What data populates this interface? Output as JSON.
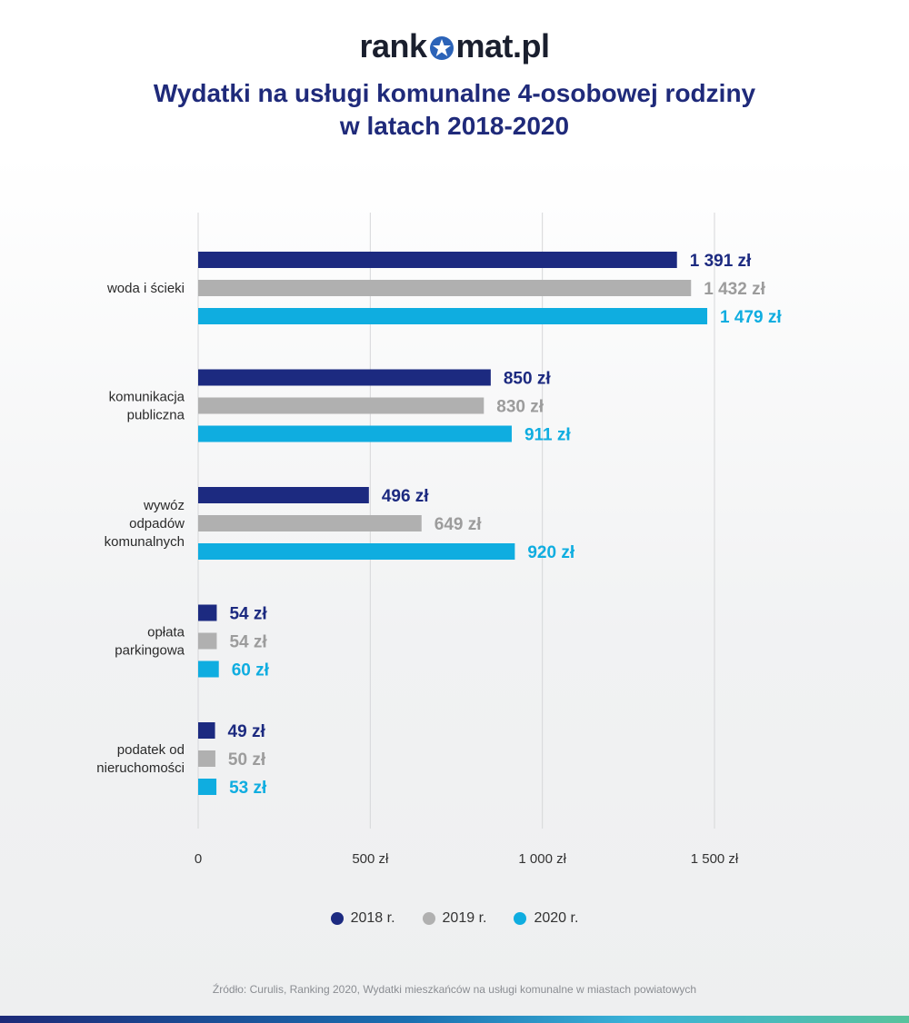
{
  "brand": {
    "logo_text_left": "rank",
    "logo_text_right": "mat.pl"
  },
  "title_line1": "Wydatki na usługi komunalne 4-osobowej rodziny",
  "title_line2": "w latach 2018-2020",
  "source": "Źródło: Curulis, Ranking 2020, Wydatki mieszkańców na usługi komunalne w miastach powiatowych",
  "chart_data": {
    "type": "bar",
    "orientation": "horizontal",
    "categories": [
      [
        "woda i ścieki"
      ],
      [
        "komunikacja",
        "publiczna"
      ],
      [
        "wywóz",
        "odpadów",
        "komunalnych"
      ],
      [
        "opłata",
        "parkingowa"
      ],
      [
        "podatek od",
        "nieruchomości"
      ]
    ],
    "series": [
      {
        "name": "2018 r.",
        "color": "#1c2a80",
        "values": [
          1391,
          850,
          496,
          54,
          49
        ],
        "labels": [
          "1 391 zł",
          "850 zł",
          "496 zł",
          "54 zł",
          "49 zł"
        ]
      },
      {
        "name": "2019 r.",
        "color": "#b0b0b0",
        "values": [
          1432,
          830,
          649,
          54,
          50
        ],
        "labels": [
          "1 432 zł",
          "830 zł",
          "649 zł",
          "54 zł",
          "50 zł"
        ]
      },
      {
        "name": "2020 r.",
        "color": "#0fade0",
        "values": [
          1479,
          911,
          920,
          60,
          53
        ],
        "labels": [
          "1 479 zł",
          "911 zł",
          "920 zł",
          "60 zł",
          "53 zł"
        ]
      }
    ],
    "xlim": [
      0,
      1500
    ],
    "xticks": [
      0,
      500,
      1000,
      1500
    ],
    "xtick_labels": [
      "0",
      "500 zł",
      "1 000 zł",
      "1 500 zł"
    ],
    "grid": true,
    "legend_position": "bottom"
  }
}
